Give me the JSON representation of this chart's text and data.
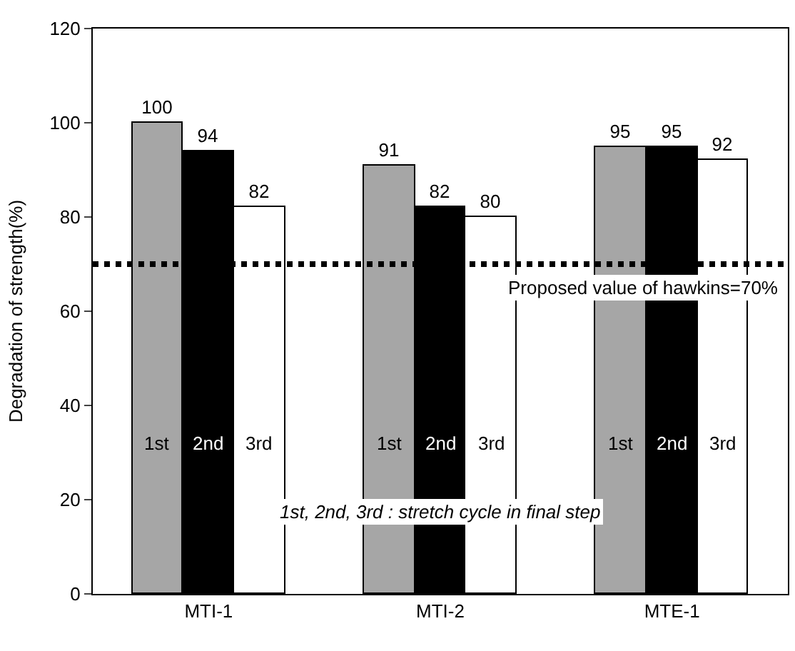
{
  "chart_data": {
    "type": "bar",
    "ylabel": "Degradation of strength(%)",
    "categories": [
      "MTI-1",
      "MTI-2",
      "MTE-1"
    ],
    "series": [
      {
        "name": "1st",
        "color": "#a6a6a6",
        "values": [
          100,
          91,
          95
        ]
      },
      {
        "name": "2nd",
        "color": "#000000",
        "values": [
          94,
          82,
          95
        ]
      },
      {
        "name": "3rd",
        "color": "#ffffff",
        "values": [
          82,
          80,
          92
        ]
      }
    ],
    "ylim": [
      0,
      120
    ],
    "yticks": [
      0,
      20,
      40,
      60,
      80,
      100,
      120
    ],
    "data_labels": true,
    "grid": false,
    "legend": false,
    "ref_lines": [
      {
        "axis": "y",
        "value": 70,
        "label": "Proposed value of hawkins=70%",
        "line_style": "dotted",
        "color": "#000000"
      }
    ],
    "annotations": [
      "1st, 2nd, 3rd : stretch cycle in final step"
    ]
  }
}
